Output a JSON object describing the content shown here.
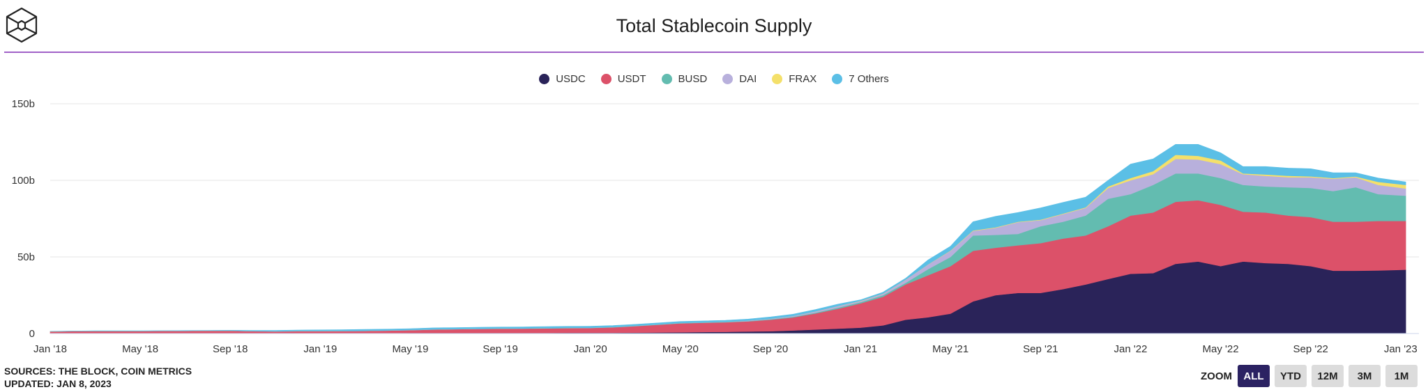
{
  "header": {
    "title": "Total Stablecoin Supply"
  },
  "footer": {
    "sources": "SOURCES: THE BLOCK, COIN METRICS",
    "updated": "UPDATED: JAN 8, 2023"
  },
  "zoom": {
    "label": "ZOOM",
    "buttons": [
      "ALL",
      "YTD",
      "12M",
      "3M",
      "1M"
    ],
    "active": "ALL"
  },
  "chart_data": {
    "type": "area",
    "stacked": true,
    "title": "Total Stablecoin Supply",
    "xlabel": "",
    "ylabel": "",
    "ylim": [
      0,
      150
    ],
    "yticks": [
      {
        "v": 0,
        "label": "0"
      },
      {
        "v": 50,
        "label": "50b"
      },
      {
        "v": 100,
        "label": "100b"
      },
      {
        "v": 150,
        "label": "150b"
      }
    ],
    "xticks": [
      {
        "d": "2018-01",
        "label": "Jan '18"
      },
      {
        "d": "2018-05",
        "label": "May '18"
      },
      {
        "d": "2018-09",
        "label": "Sep '18"
      },
      {
        "d": "2019-01",
        "label": "Jan '19"
      },
      {
        "d": "2019-05",
        "label": "May '19"
      },
      {
        "d": "2019-09",
        "label": "Sep '19"
      },
      {
        "d": "2020-01",
        "label": "Jan '20"
      },
      {
        "d": "2020-05",
        "label": "May '20"
      },
      {
        "d": "2020-09",
        "label": "Sep '20"
      },
      {
        "d": "2021-01",
        "label": "Jan '21"
      },
      {
        "d": "2021-05",
        "label": "May '21"
      },
      {
        "d": "2021-09",
        "label": "Sep '21"
      },
      {
        "d": "2022-01",
        "label": "Jan '22"
      },
      {
        "d": "2022-05",
        "label": "May '22"
      },
      {
        "d": "2022-09",
        "label": "Sep '22"
      },
      {
        "d": "2023-01",
        "label": "Jan '23"
      }
    ],
    "grid": true,
    "legend_position": "top-center",
    "x": [
      "2018-01",
      "2018-02",
      "2018-03",
      "2018-04",
      "2018-05",
      "2018-06",
      "2018-07",
      "2018-08",
      "2018-09",
      "2018-10",
      "2018-11",
      "2018-12",
      "2019-01",
      "2019-02",
      "2019-03",
      "2019-04",
      "2019-05",
      "2019-06",
      "2019-07",
      "2019-08",
      "2019-09",
      "2019-10",
      "2019-11",
      "2019-12",
      "2020-01",
      "2020-02",
      "2020-03",
      "2020-04",
      "2020-05",
      "2020-06",
      "2020-07",
      "2020-08",
      "2020-09",
      "2020-10",
      "2020-11",
      "2020-12",
      "2021-01",
      "2021-02",
      "2021-03",
      "2021-04",
      "2021-05",
      "2021-06",
      "2021-07",
      "2021-08",
      "2021-09",
      "2021-10",
      "2021-11",
      "2021-12",
      "2022-01",
      "2022-02",
      "2022-03",
      "2022-04",
      "2022-05",
      "2022-06",
      "2022-07",
      "2022-08",
      "2022-09",
      "2022-10",
      "2022-11",
      "2022-12",
      "2023-01-08"
    ],
    "series": [
      {
        "name": "USDC",
        "color": "#2a2359",
        "values": [
          0,
          0,
          0,
          0,
          0,
          0,
          0,
          0,
          0,
          0.1,
          0.2,
          0.3,
          0.3,
          0.3,
          0.3,
          0.3,
          0.4,
          0.4,
          0.4,
          0.4,
          0.4,
          0.4,
          0.4,
          0.5,
          0.5,
          0.5,
          0.6,
          0.7,
          0.8,
          1.0,
          1.1,
          1.3,
          1.5,
          2.0,
          2.6,
          3.2,
          3.8,
          5.3,
          9,
          10.6,
          13,
          21,
          25,
          26.5,
          26.5,
          29,
          32,
          35.6,
          39,
          39.4,
          45.5,
          47,
          44,
          47,
          46,
          45.5,
          44,
          41,
          41,
          41.2,
          41.7
        ]
      },
      {
        "name": "USDT",
        "color": "#dc5169",
        "values": [
          1.3,
          1.5,
          1.6,
          1.6,
          1.6,
          1.7,
          1.7,
          1.8,
          1.8,
          1.4,
          1.2,
          1.2,
          1.2,
          1.3,
          1.4,
          1.6,
          1.8,
          2.2,
          2.4,
          2.6,
          2.7,
          2.8,
          2.9,
          3.0,
          3.1,
          3.5,
          4.2,
          5.0,
          5.8,
          6.0,
          6.2,
          6.6,
          7.5,
          8.5,
          10.5,
          13,
          15.9,
          18.7,
          23,
          27.4,
          31,
          33,
          31,
          31.1,
          32.5,
          33,
          32,
          34.4,
          38,
          39.6,
          40.5,
          40,
          40,
          32.5,
          33,
          31.5,
          32,
          32,
          32,
          32.3,
          31.8
        ]
      },
      {
        "name": "BUSD",
        "color": "#63bcb0",
        "values": [
          0,
          0,
          0,
          0,
          0,
          0,
          0,
          0,
          0,
          0,
          0,
          0,
          0,
          0,
          0,
          0,
          0,
          0,
          0,
          0,
          0.05,
          0.05,
          0.1,
          0.1,
          0.1,
          0.1,
          0.1,
          0.1,
          0.15,
          0.15,
          0.2,
          0.2,
          0.3,
          0.4,
          0.5,
          0.7,
          0.8,
          1.0,
          1,
          4,
          6,
          10,
          8.4,
          7.4,
          11,
          11,
          13,
          18,
          14,
          18,
          18.5,
          17.5,
          17.5,
          17.5,
          17,
          18.5,
          19,
          20,
          22.5,
          17.5,
          16.5
        ]
      },
      {
        "name": "DAI",
        "color": "#b8b0dc",
        "values": [
          0.05,
          0.05,
          0.05,
          0.05,
          0.05,
          0.05,
          0.05,
          0.05,
          0.05,
          0.06,
          0.06,
          0.07,
          0.07,
          0.08,
          0.08,
          0.08,
          0.08,
          0.08,
          0.08,
          0.08,
          0.08,
          0.08,
          0.08,
          0.08,
          0.08,
          0.08,
          0.1,
          0.1,
          0.1,
          0.1,
          0.15,
          0.3,
          0.4,
          0.6,
          0.8,
          1.0,
          0.7,
          1.0,
          2,
          3,
          4,
          3,
          4.6,
          7.7,
          4,
          5,
          5,
          7,
          9,
          7,
          9.5,
          9.1,
          9.1,
          7,
          7,
          6.5,
          7,
          8,
          6.5,
          6,
          4.7
        ]
      },
      {
        "name": "FRAX",
        "color": "#f4e06a",
        "values": [
          0,
          0,
          0,
          0,
          0,
          0,
          0,
          0,
          0,
          0,
          0,
          0,
          0,
          0,
          0,
          0,
          0,
          0,
          0,
          0,
          0,
          0,
          0,
          0,
          0,
          0,
          0,
          0,
          0,
          0,
          0,
          0,
          0,
          0,
          0.05,
          0.1,
          0.1,
          0.1,
          0.1,
          0.1,
          0.2,
          0.3,
          0.3,
          0.3,
          0.3,
          0.3,
          0.4,
          1,
          1.5,
          2,
          2.7,
          2.4,
          2.4,
          0.5,
          0.8,
          1,
          0.6,
          0.5,
          0.5,
          2,
          2.3
        ]
      },
      {
        "name": "7 Others",
        "color": "#5bbfe6",
        "values": [
          0.1,
          0.1,
          0.1,
          0.1,
          0.1,
          0.1,
          0.2,
          0.2,
          0.3,
          0.5,
          0.6,
          0.7,
          0.8,
          0.8,
          0.9,
          0.9,
          0.9,
          1.0,
          1.0,
          1.0,
          1.0,
          1.0,
          1.0,
          1.0,
          1.0,
          1.0,
          1.0,
          1.0,
          1.0,
          1.0,
          1.0,
          1.0,
          1.1,
          1.1,
          1.2,
          1.2,
          0.7,
          0.9,
          0.9,
          2.9,
          2.8,
          5.7,
          7.2,
          6,
          7.7,
          7.3,
          6.6,
          4,
          9.1,
          8,
          6.8,
          7.5,
          5,
          4.5,
          5.2,
          5,
          5,
          3.5,
          2.5,
          2.5,
          2
        ]
      }
    ]
  }
}
